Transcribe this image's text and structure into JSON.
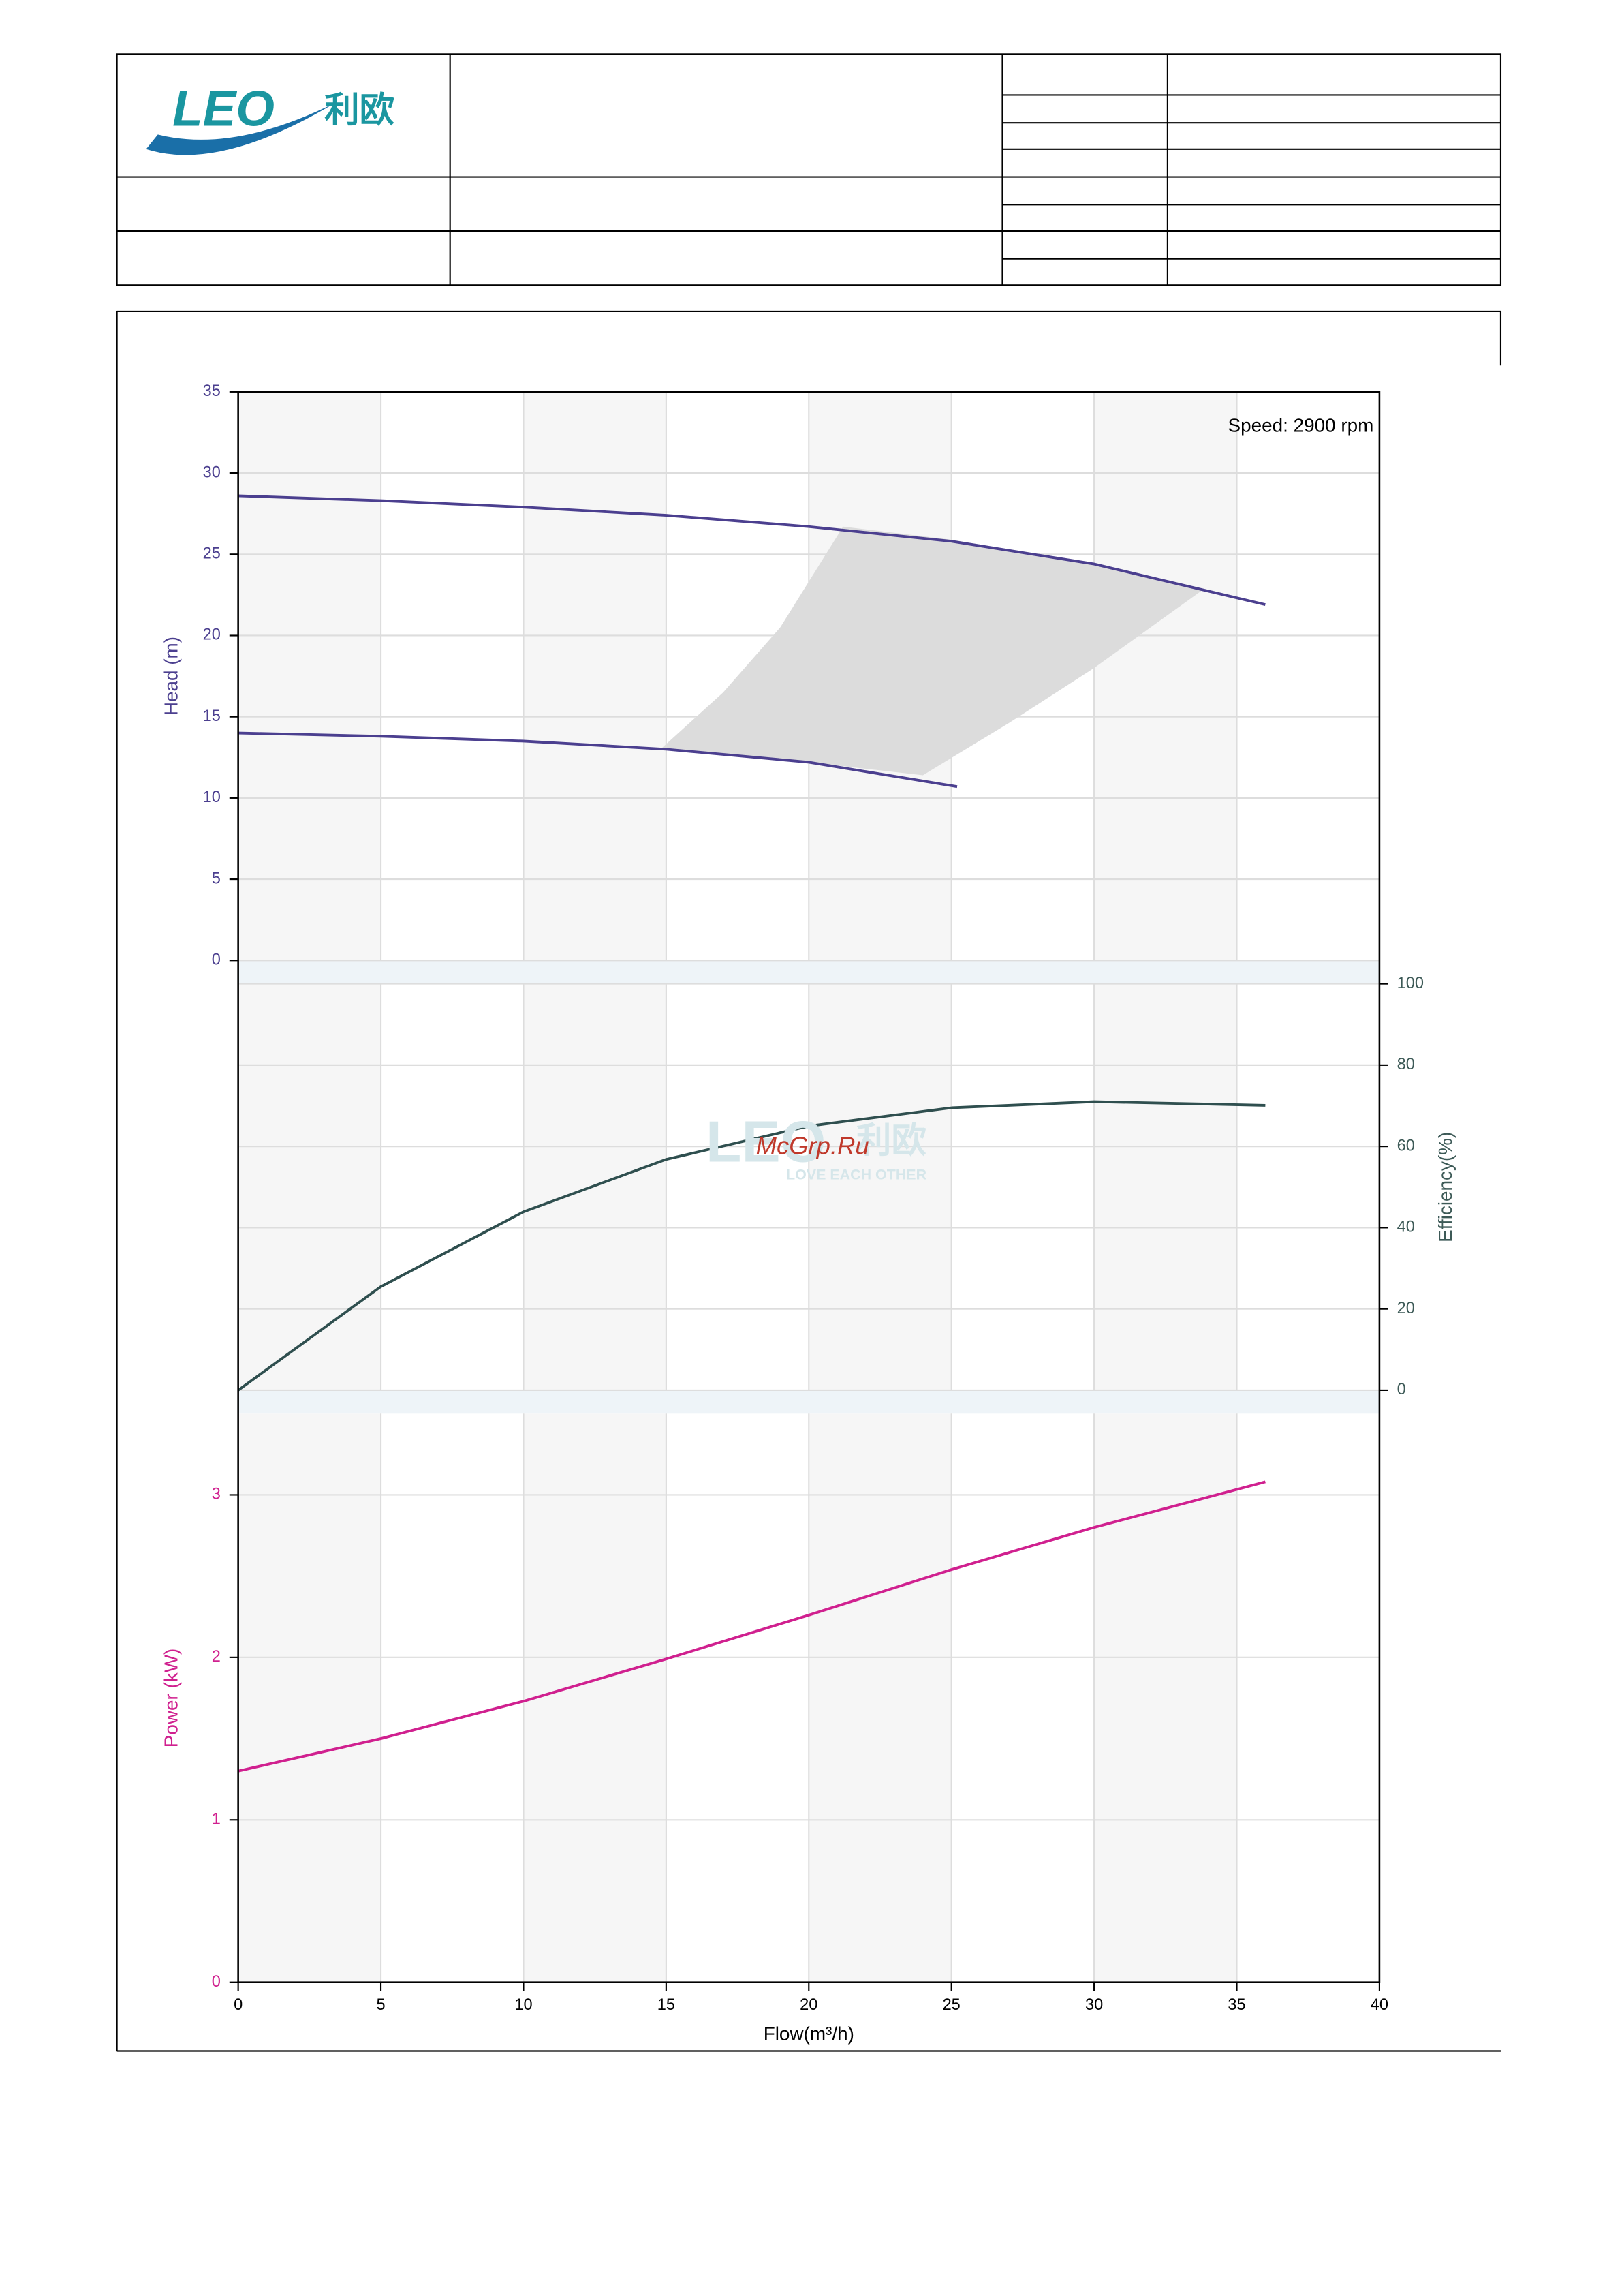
{
  "header": {
    "logo": "LEO",
    "logo_cn": "利欧"
  },
  "watermark": {
    "logo": "LEO",
    "logo_cn": "利欧",
    "tagline": "LOVE EACH OTHER",
    "site": "McGrp.Ru"
  },
  "chart_data": [
    {
      "type": "line",
      "y_label": "Head (m)",
      "annotation": "Speed: 2900 rpm",
      "axis_side": "left",
      "color": "#4b3f8f",
      "xlim": [
        0,
        40
      ],
      "ylim": [
        0,
        35
      ],
      "yticks": [
        0,
        5,
        10,
        15,
        20,
        25,
        30,
        35
      ],
      "grid": true,
      "series": [
        {
          "color": "#dcdcdc",
          "fill": true,
          "x": [
            14.8,
            17,
            19,
            21.2,
            25,
            30,
            33.8,
            30,
            27,
            24,
            20,
            17,
            14.8
          ],
          "values": [
            13.0,
            16.5,
            20.5,
            26.7,
            25.9,
            24.4,
            22.8,
            18.0,
            14.6,
            11.4,
            12.2,
            12.7,
            13.0
          ]
        },
        {
          "color": "#4b3f8f",
          "x": [
            0,
            5,
            10,
            15,
            20,
            25,
            30,
            36
          ],
          "values": [
            28.6,
            28.3,
            27.9,
            27.4,
            26.7,
            25.8,
            24.4,
            21.9
          ]
        },
        {
          "color": "#4b3f8f",
          "x": [
            0,
            5,
            10,
            15,
            20,
            25.2
          ],
          "values": [
            14.0,
            13.8,
            13.5,
            13.0,
            12.2,
            10.7
          ]
        }
      ]
    },
    {
      "type": "line",
      "y_label": "Efficiency(%)",
      "axis_side": "right",
      "color": "#3d5a57",
      "xlim": [
        0,
        40
      ],
      "ylim": [
        0,
        100
      ],
      "yticks": [
        0,
        20,
        40,
        60,
        80,
        100
      ],
      "grid": true,
      "series": [
        {
          "color": "#2f4f4f",
          "x": [
            0,
            5,
            10,
            15,
            20,
            25,
            30,
            36
          ],
          "values": [
            0,
            25.5,
            43.9,
            56.8,
            65,
            69.5,
            71,
            70.1
          ]
        }
      ]
    },
    {
      "type": "line",
      "y_label": "Power (kW)",
      "x_label": "Flow(m³/h)",
      "axis_side": "left",
      "color": "#d0208f",
      "xlim": [
        0,
        40
      ],
      "xticks": [
        0,
        5,
        10,
        15,
        20,
        25,
        30,
        35,
        40
      ],
      "ylim": [
        0,
        3.5
      ],
      "yticks": [
        0,
        1,
        2,
        3
      ],
      "grid": true,
      "series": [
        {
          "color": "#d0208f",
          "x": [
            0,
            5,
            10,
            15,
            20,
            25,
            30,
            36
          ],
          "values": [
            1.3,
            1.5,
            1.73,
            1.99,
            2.26,
            2.54,
            2.8,
            3.08
          ]
        }
      ]
    }
  ]
}
